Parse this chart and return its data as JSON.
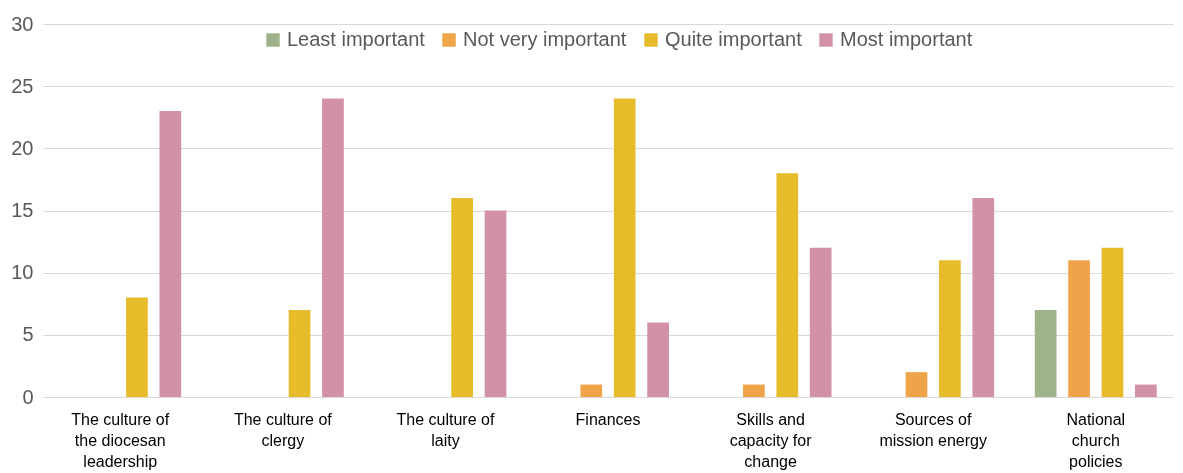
{
  "chart_data": {
    "type": "bar",
    "categories": [
      "The culture of the diocesan leadership",
      "The culture of clergy",
      "The culture of laity",
      "Finances",
      "Skills and capacity for change",
      "Sources of mission energy",
      "National church policies"
    ],
    "series": [
      {
        "name": "Least important",
        "color": "#9fb38a",
        "values": [
          0,
          0,
          0,
          0,
          0,
          0,
          7
        ]
      },
      {
        "name": "Not very important",
        "color": "#f0a44a",
        "values": [
          0,
          0,
          0,
          1,
          1,
          2,
          11
        ]
      },
      {
        "name": "Quite important",
        "color": "#e6bc2a",
        "values": [
          8,
          7,
          16,
          24,
          18,
          11,
          12
        ]
      },
      {
        "name": "Most important",
        "color": "#d291a8",
        "values": [
          23,
          24,
          15,
          6,
          12,
          16,
          1
        ]
      }
    ],
    "ylim": [
      0,
      30
    ],
    "yticks": [
      0,
      5,
      10,
      15,
      20,
      25,
      30
    ],
    "grid": "y",
    "legend": "top"
  }
}
